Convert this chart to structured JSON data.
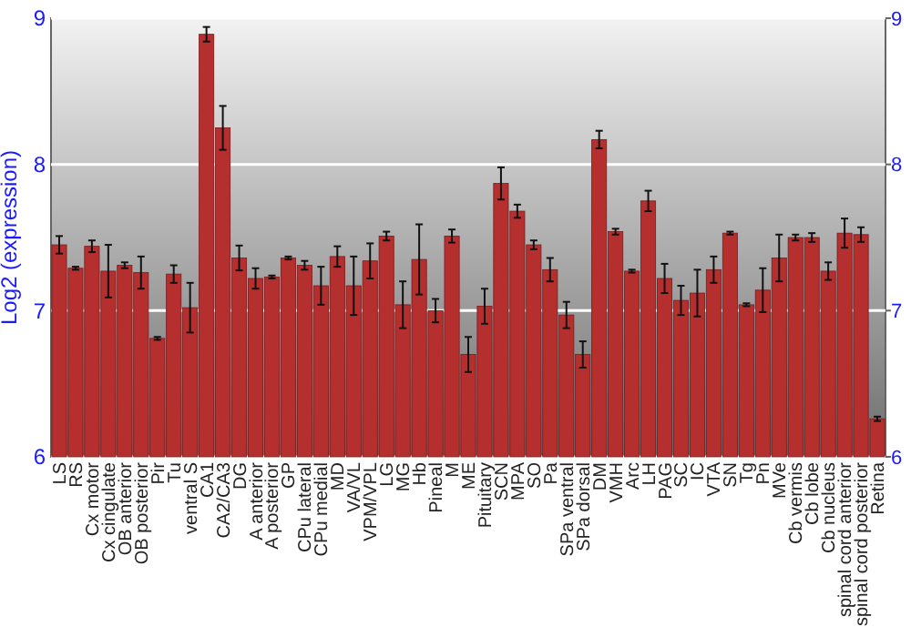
{
  "chart_data": {
    "type": "bar",
    "ylabel": "Log2 (expression)",
    "categories": [
      "LS",
      "RS",
      "Cx motor",
      "Cx cingulate",
      "OB anterior",
      "OB posterior",
      "Pir",
      "Tu",
      "ventral S",
      "CA1",
      "CA2/CA3",
      "DG",
      "A anterior",
      "A posterior",
      "GP",
      "CPu lateral",
      "CPu medial",
      "MD",
      "VA/VL",
      "VPM/VPL",
      "LG",
      "MG",
      "Hb",
      "Pineal",
      "M",
      "ME",
      "Pituitary",
      "SCN",
      "MPA",
      "SO",
      "Pa",
      "SPa ventral",
      "SPa dorsal",
      "DM",
      "VMH",
      "Arc",
      "LH",
      "PAG",
      "SC",
      "IC",
      "VTA",
      "SN",
      "Tg",
      "Pn",
      "MVe",
      "Cb vermis",
      "Cb lobe",
      "Cb nucleus",
      "spinal cord anterior",
      "spinal cord posterior",
      "Retina"
    ],
    "values": [
      7.45,
      7.29,
      7.44,
      7.27,
      7.31,
      7.26,
      6.81,
      7.25,
      7.02,
      8.89,
      8.25,
      7.36,
      7.22,
      7.23,
      7.36,
      7.31,
      7.17,
      7.37,
      7.17,
      7.34,
      7.51,
      7.04,
      7.35,
      7.0,
      7.51,
      6.7,
      7.03,
      7.87,
      7.68,
      7.45,
      7.28,
      6.97,
      6.7,
      8.17,
      7.54,
      7.27,
      7.75,
      7.22,
      7.07,
      7.12,
      7.28,
      7.53,
      7.04,
      7.14,
      7.36,
      7.5,
      7.5,
      7.27,
      7.53,
      7.52,
      6.26
    ],
    "errors": [
      0.06,
      0.01,
      0.04,
      0.18,
      0.02,
      0.11,
      0.01,
      0.06,
      0.17,
      0.05,
      0.15,
      0.085,
      0.07,
      0.01,
      0.01,
      0.03,
      0.13,
      0.07,
      0.2,
      0.12,
      0.03,
      0.16,
      0.24,
      0.08,
      0.045,
      0.12,
      0.12,
      0.11,
      0.045,
      0.03,
      0.08,
      0.09,
      0.09,
      0.06,
      0.02,
      0.01,
      0.07,
      0.1,
      0.1,
      0.16,
      0.09,
      0.01,
      0.01,
      0.15,
      0.16,
      0.02,
      0.03,
      0.06,
      0.1,
      0.05,
      0.015
    ],
    "color": "#b52f2f",
    "ylim": [
      6,
      9
    ],
    "yticks": [
      6,
      7,
      8,
      9
    ],
    "y2lim": [
      6,
      9
    ],
    "y2ticks": [
      6,
      7,
      8,
      9
    ],
    "grid": "y"
  }
}
